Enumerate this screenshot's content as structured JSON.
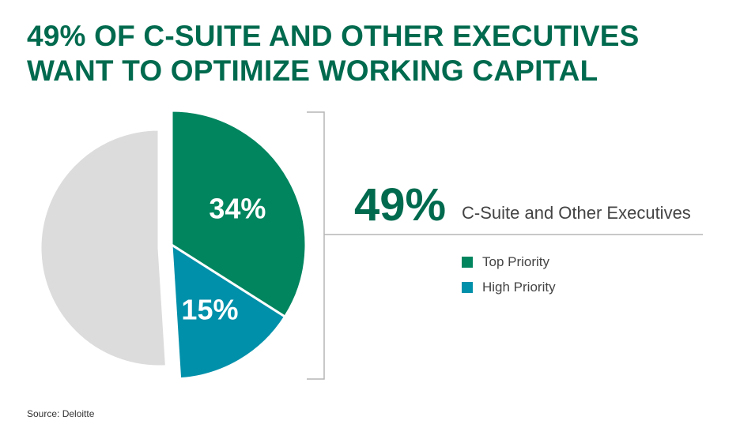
{
  "title": "49% OF C-SUITE AND OTHER EXECUTIVES WANT TO OPTIMIZE WORKING CAPITAL",
  "callout": {
    "value": "49%",
    "label": "C-Suite and Other Executives"
  },
  "source": "Source: Deloitte",
  "colors": {
    "title": "#006a4e",
    "top_priority": "#00855f",
    "high_priority": "#0090aa",
    "remaining": "#dcdcdc",
    "bracket": "#b5b5b5"
  },
  "chart_data": {
    "type": "pie",
    "title": "49% OF C-SUITE AND OTHER EXECUTIVES WANT TO OPTIMIZE WORKING CAPITAL",
    "slices": [
      {
        "name": "Top Priority",
        "value": 34,
        "label": "34%",
        "color": "#00855f",
        "exploded": true
      },
      {
        "name": "High Priority",
        "value": 15,
        "label": "15%",
        "color": "#0090aa",
        "exploded": true
      },
      {
        "name": "",
        "value": 51,
        "label": "",
        "color": "#dcdcdc",
        "exploded": false
      }
    ],
    "legend": {
      "placement": "right",
      "entries": [
        {
          "name": "Top Priority",
          "color": "#00855f"
        },
        {
          "name": "High Priority",
          "color": "#0090aa"
        }
      ]
    }
  }
}
